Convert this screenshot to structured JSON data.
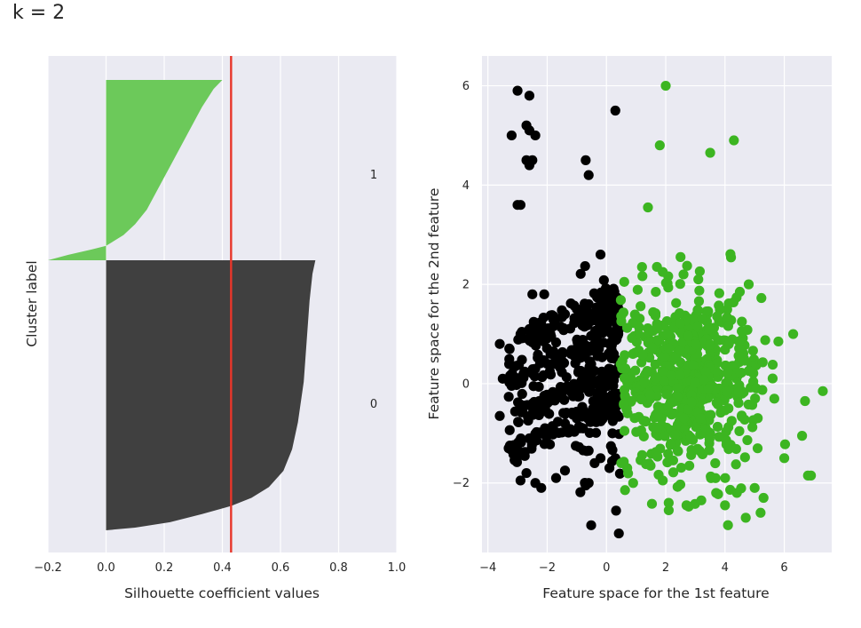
{
  "page_title": "k = 2",
  "colors": {
    "panel_bg": "#eaeaf2",
    "grid": "#ffffff",
    "cluster0": "#000000",
    "cluster1": "#3cb521",
    "sil_cluster0": "#404040",
    "sil_cluster1": "#6cc95a",
    "avg_line": "#e8362a"
  },
  "chart_data": [
    {
      "type": "area",
      "xlabel": "Silhouette coefficient values",
      "ylabel": "Cluster label",
      "xlim": [
        -0.2,
        1.0
      ],
      "xticks": [
        -0.2,
        0.0,
        0.2,
        0.4,
        0.6,
        0.8,
        1.0
      ],
      "xtick_labels": [
        "−0.2",
        "0.0",
        "0.2",
        "0.4",
        "0.6",
        "0.8",
        "1.0"
      ],
      "grid": true,
      "average_silhouette": 0.43,
      "cluster_labels": [
        "1",
        "0"
      ],
      "clusters": [
        {
          "label": "1",
          "color_key": "sil_cluster1",
          "profile": [
            [
              0.0,
              0.4
            ],
            [
              0.05,
              0.37
            ],
            [
              0.15,
              0.33
            ],
            [
              0.3,
              0.28
            ],
            [
              0.45,
              0.23
            ],
            [
              0.6,
              0.18
            ],
            [
              0.72,
              0.14
            ],
            [
              0.8,
              0.1
            ],
            [
              0.86,
              0.06
            ],
            [
              0.9,
              0.02
            ],
            [
              0.92,
              0.0
            ],
            [
              0.94,
              -0.05
            ],
            [
              0.97,
              -0.13
            ],
            [
              1.0,
              -0.2
            ]
          ]
        },
        {
          "label": "0",
          "color_key": "sil_cluster0",
          "profile": [
            [
              0.0,
              0.72
            ],
            [
              0.05,
              0.71
            ],
            [
              0.15,
              0.7
            ],
            [
              0.3,
              0.69
            ],
            [
              0.45,
              0.68
            ],
            [
              0.6,
              0.66
            ],
            [
              0.7,
              0.64
            ],
            [
              0.78,
              0.61
            ],
            [
              0.84,
              0.56
            ],
            [
              0.88,
              0.5
            ],
            [
              0.91,
              0.43
            ],
            [
              0.94,
              0.33
            ],
            [
              0.97,
              0.22
            ],
            [
              0.99,
              0.1
            ],
            [
              1.0,
              0.0
            ]
          ]
        }
      ]
    },
    {
      "type": "scatter",
      "xlabel": "Feature space for the 1st feature",
      "ylabel": "Feature space for the 2nd feature",
      "xlim": [
        -4.2,
        7.6
      ],
      "ylim": [
        -3.4,
        6.6
      ],
      "xticks": [
        -4,
        -2,
        0,
        2,
        4,
        6
      ],
      "xtick_labels": [
        "−4",
        "−2",
        "0",
        "2",
        "4",
        "6"
      ],
      "yticks": [
        -2,
        0,
        2,
        4,
        6
      ],
      "ytick_labels": [
        "−2",
        "0",
        "2",
        "4",
        "6"
      ],
      "grid": true,
      "series": [
        {
          "color_key": "cluster0",
          "points": [
            [
              -3.0,
              5.9
            ],
            [
              -2.6,
              5.8
            ],
            [
              -3.2,
              5.0
            ],
            [
              -2.7,
              5.2
            ],
            [
              -2.6,
              5.1
            ],
            [
              -2.4,
              5.0
            ],
            [
              0.3,
              5.5
            ],
            [
              -0.7,
              4.5
            ],
            [
              -0.6,
              4.2
            ],
            [
              -2.7,
              4.5
            ],
            [
              -2.5,
              4.5
            ],
            [
              -2.6,
              4.4
            ],
            [
              -3.0,
              3.6
            ],
            [
              -2.9,
              3.6
            ],
            [
              -0.2,
              2.6
            ],
            [
              -2.5,
              1.8
            ],
            [
              -2.1,
              1.8
            ],
            [
              -0.2,
              1.7
            ],
            [
              0.1,
              1.8
            ],
            [
              -3.6,
              0.8
            ],
            [
              -3.5,
              0.1
            ],
            [
              -3.6,
              -0.65
            ],
            [
              -3.3,
              -1.3
            ],
            [
              -2.9,
              -1.95
            ],
            [
              -2.7,
              -1.8
            ],
            [
              -2.4,
              -2.0
            ],
            [
              -2.2,
              -2.1
            ],
            [
              -1.7,
              -1.9
            ],
            [
              -1.4,
              -1.75
            ],
            [
              -0.7,
              -2.05
            ],
            [
              -0.6,
              -2.0
            ],
            [
              -0.4,
              -1.6
            ],
            [
              -0.2,
              -1.5
            ],
            [
              0.1,
              -1.7
            ],
            [
              0.3,
              -1.5
            ],
            [
              -0.6,
              -1.35
            ],
            [
              -2.9,
              1.0
            ],
            [
              -2.6,
              1.1
            ],
            [
              -2.2,
              1.2
            ],
            [
              -1.8,
              1.3
            ],
            [
              -1.4,
              1.4
            ],
            [
              -1.0,
              1.5
            ],
            [
              -0.6,
              1.6
            ],
            [
              -0.2,
              1.5
            ],
            [
              0.2,
              1.4
            ],
            [
              -2.8,
              0.2
            ],
            [
              -2.4,
              0.3
            ],
            [
              -2.0,
              0.4
            ],
            [
              -1.6,
              0.5
            ],
            [
              -1.2,
              0.6
            ],
            [
              -0.8,
              0.7
            ],
            [
              -0.4,
              0.8
            ],
            [
              0.1,
              0.8
            ],
            [
              -2.9,
              -0.5
            ],
            [
              -2.5,
              -0.4
            ],
            [
              -2.1,
              -0.3
            ],
            [
              -1.7,
              -0.2
            ],
            [
              -1.3,
              -0.1
            ],
            [
              -0.9,
              0.0
            ],
            [
              -0.5,
              0.1
            ],
            [
              0.0,
              0.1
            ],
            [
              -3.0,
              -1.2
            ],
            [
              -2.6,
              -1.1
            ],
            [
              -2.2,
              -1.0
            ],
            [
              -1.8,
              -0.9
            ],
            [
              -1.4,
              -0.8
            ],
            [
              -1.0,
              -0.7
            ],
            [
              -0.6,
              -0.6
            ],
            [
              -0.1,
              -0.6
            ],
            [
              0.3,
              0.5
            ],
            [
              0.35,
              -0.3
            ],
            [
              0.4,
              1.0
            ],
            [
              0.2,
              -1.0
            ]
          ],
          "bands": [
            {
              "x_range": [
                -3.3,
                0.45
              ],
              "y_start": 0.75,
              "slope": 0.27,
              "spread": 0.16,
              "count": 90
            },
            {
              "x_range": [
                -3.3,
                0.45
              ],
              "y_start": 0.05,
              "slope": 0.27,
              "spread": 0.16,
              "count": 90
            },
            {
              "x_range": [
                -3.3,
                0.45
              ],
              "y_start": -0.7,
              "slope": 0.27,
              "spread": 0.16,
              "count": 90
            },
            {
              "x_range": [
                -3.3,
                0.45
              ],
              "y_start": -1.4,
              "slope": 0.27,
              "spread": 0.16,
              "count": 80
            },
            {
              "x_range": [
                -1.0,
                0.5
              ],
              "y_start": -0.2,
              "slope": 0.0,
              "spread": 1.1,
              "count": 70
            }
          ]
        },
        {
          "color_key": "cluster1",
          "points": [
            [
              2.0,
              6.0
            ],
            [
              4.3,
              4.9
            ],
            [
              1.8,
              4.8
            ],
            [
              3.5,
              4.65
            ],
            [
              1.4,
              3.55
            ],
            [
              2.5,
              2.55
            ],
            [
              1.2,
              2.35
            ],
            [
              1.9,
              2.25
            ],
            [
              2.6,
              2.2
            ],
            [
              3.1,
              2.1
            ],
            [
              4.8,
              2.0
            ],
            [
              4.5,
              1.85
            ],
            [
              0.6,
              2.05
            ],
            [
              6.3,
              1.0
            ],
            [
              5.8,
              0.85
            ],
            [
              7.3,
              -0.15
            ],
            [
              6.7,
              -0.35
            ],
            [
              6.6,
              -1.05
            ],
            [
              6.8,
              -1.85
            ],
            [
              6.9,
              -1.85
            ],
            [
              6.0,
              -1.5
            ],
            [
              5.3,
              -2.3
            ],
            [
              5.2,
              -2.6
            ],
            [
              4.7,
              -2.7
            ],
            [
              4.1,
              -2.85
            ],
            [
              4.0,
              -2.45
            ],
            [
              3.2,
              -2.35
            ],
            [
              2.7,
              -2.45
            ],
            [
              2.1,
              -2.4
            ],
            [
              1.9,
              -1.95
            ],
            [
              0.9,
              -2.0
            ],
            [
              0.7,
              -1.7
            ],
            [
              0.5,
              -1.6
            ],
            [
              5.0,
              -2.1
            ],
            [
              4.4,
              -2.2
            ],
            [
              3.7,
              -2.2
            ]
          ],
          "cloud": {
            "center": [
              2.8,
              0.0
            ],
            "sx": 1.2,
            "sy": 0.85,
            "count": 620,
            "x_min": 0.45
          }
        }
      ]
    }
  ]
}
